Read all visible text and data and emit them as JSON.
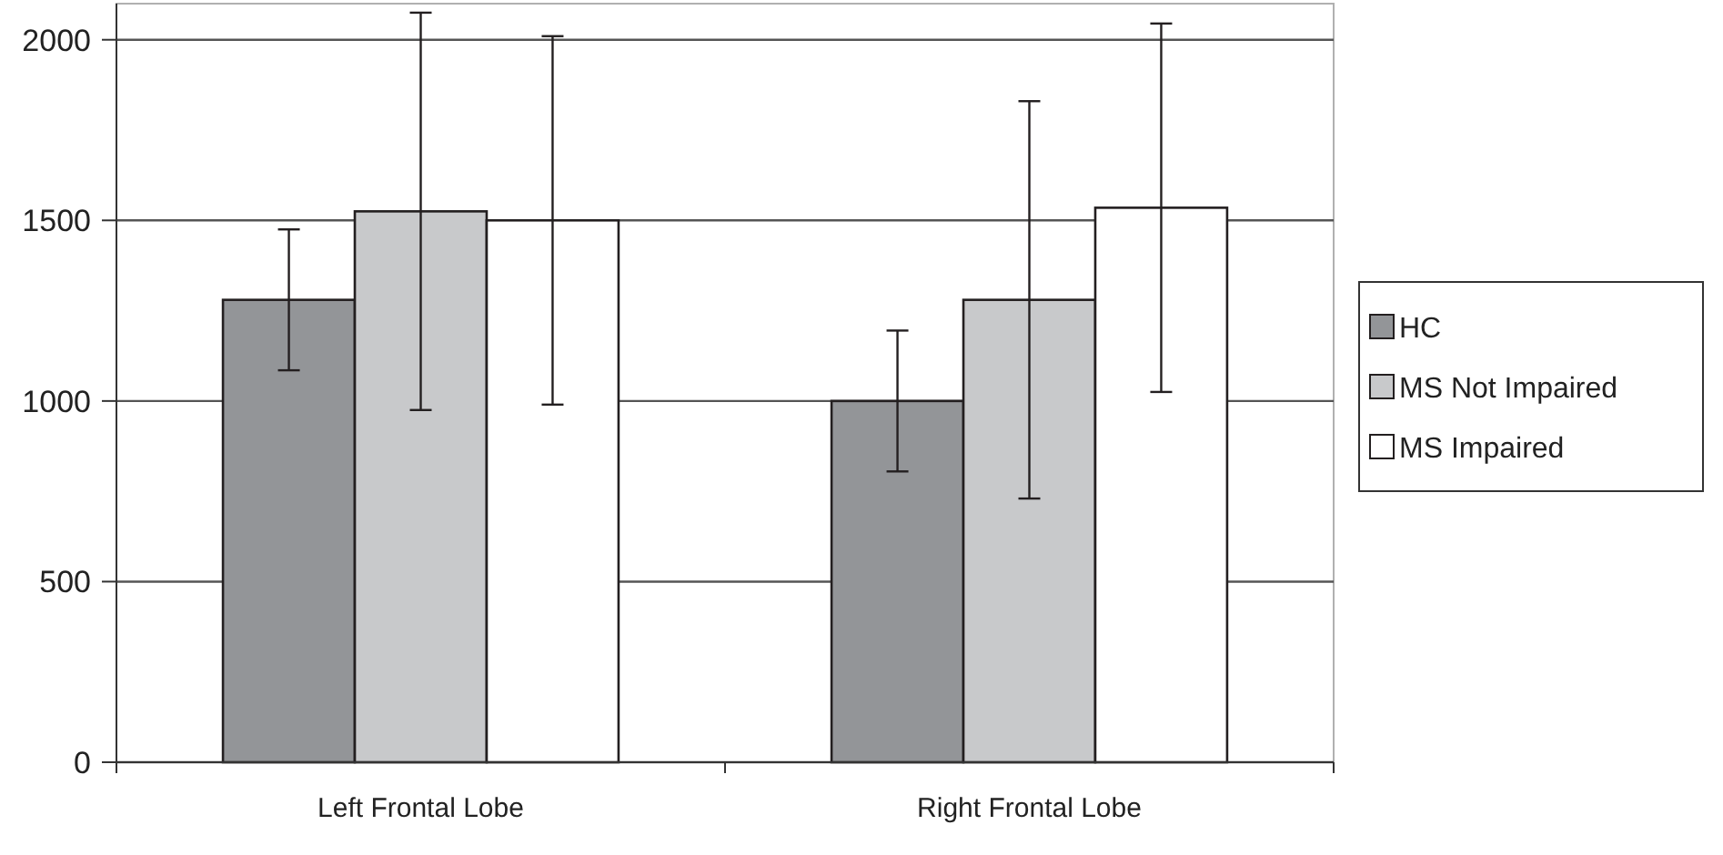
{
  "chart_data": {
    "type": "bar",
    "categories": [
      "Left Frontal Lobe",
      "Right Frontal Lobe"
    ],
    "series": [
      {
        "name": "HC",
        "color": "#939598",
        "values": [
          1280,
          1000
        ],
        "errors": [
          195,
          195
        ]
      },
      {
        "name": "MS Not Impaired",
        "color": "#c8c9cb",
        "values": [
          1525,
          1280
        ],
        "errors": [
          550,
          550
        ]
      },
      {
        "name": "MS Impaired",
        "color": "#ffffff",
        "values": [
          1500,
          1535
        ],
        "errors": [
          510,
          510
        ]
      }
    ],
    "ylim": [
      0,
      2100
    ],
    "yticks": [
      0,
      500,
      1000,
      1500,
      2000
    ],
    "grid": "y",
    "legend": "right"
  }
}
